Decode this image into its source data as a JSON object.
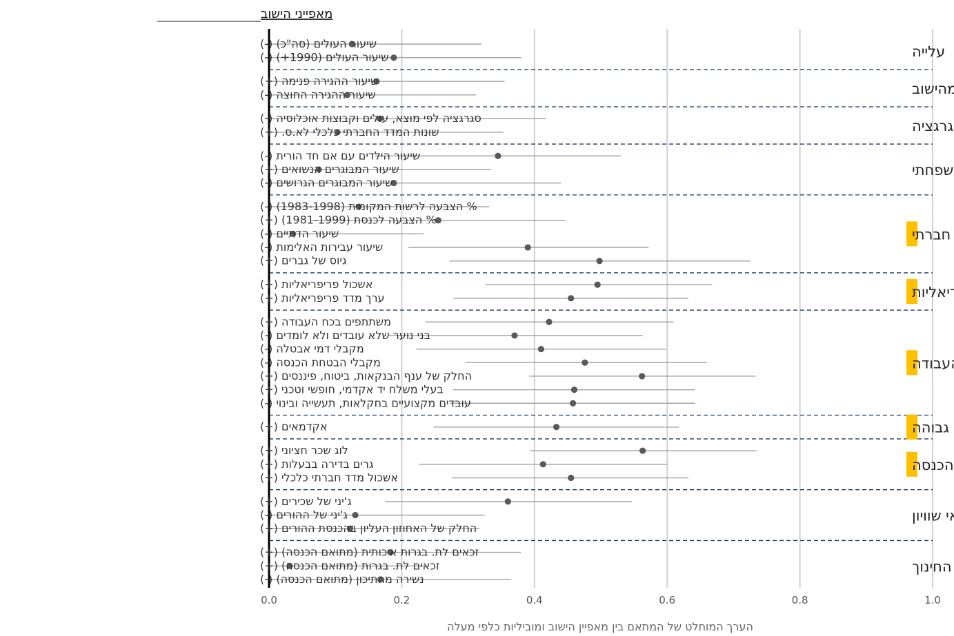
{
  "chart_data": {
    "type": "dot-range",
    "title": "מאפייני הישוב",
    "xlabel": "הערך המוחלט של המתאם בין מאפיין הישוב ומוביליות כלפי מעלה",
    "xlim": [
      0,
      1
    ],
    "xticks": [
      "0.0",
      "0.2",
      "0.4",
      "0.6",
      "0.8",
      "1.0"
    ],
    "grid": "vertical",
    "highlight_color": "#FFC000",
    "dot_color": "#595959",
    "line_color": "#A6A6A6",
    "separator_color": "#1F3864",
    "groups": [
      {
        "category": "עלייה",
        "highlight": false,
        "items": [
          {
            "label": "שיעור העולים (סה\"כ) (-)",
            "value": 0.125,
            "low": 0.0,
            "high": 0.32
          },
          {
            "label": "שיעור העולים (1990+) (-)",
            "value": 0.188,
            "low": 0.0,
            "high": 0.38
          }
        ]
      },
      {
        "category": "הגירה מהישוב",
        "highlight": false,
        "items": [
          {
            "label": "שיעור ההגירה פנימה (+)",
            "value": 0.162,
            "low": 0.0,
            "high": 0.355
          },
          {
            "label": "שיעור ההגירה החוצה (-)",
            "value": 0.118,
            "low": 0.0,
            "high": 0.312
          }
        ]
      },
      {
        "category": "סגרגציה",
        "highlight": false,
        "items": [
          {
            "label": "סגרגציה לפי מוצא, עולים וקבוצות אוכלוסיה (-)",
            "value": 0.167,
            "low": 0.0,
            "high": 0.418
          },
          {
            "label": "שונות המדד החברתי כלכלי לא.ס. (+)",
            "value": 0.103,
            "low": 0.0,
            "high": 0.353
          }
        ]
      },
      {
        "category": "מבנה משפחתי",
        "highlight": false,
        "items": [
          {
            "label": "שיעור הילדים עם אם חד הורית (-)",
            "value": 0.345,
            "low": 0.16,
            "high": 0.53
          },
          {
            "label": "שיעור המבוגרים הנשואים (+)",
            "value": 0.075,
            "low": 0.0,
            "high": 0.335
          },
          {
            "label": "שיעור המבוגרים הגרושים (-)",
            "value": 0.188,
            "low": 0.0,
            "high": 0.44
          }
        ]
      },
      {
        "category": "הון חברתי",
        "highlight": true,
        "items": [
          {
            "label": "% הצבעה לרשות המקומית (1983-1998) (-)",
            "value": 0.135,
            "low": 0.0,
            "high": 0.332
          },
          {
            "label": "% הצבעה לכנסת (1981-1999) (+)",
            "value": 0.255,
            "low": 0.062,
            "high": 0.447
          },
          {
            "label": "שיעור הדתיים (-)",
            "value": 0.036,
            "low": 0.0,
            "high": 0.233
          },
          {
            "label": "שיעור עבירות האלימות (-)",
            "value": 0.39,
            "low": 0.21,
            "high": 0.572
          },
          {
            "label": "גיוס של גברים (+)",
            "value": 0.498,
            "low": 0.272,
            "high": 0.725
          }
        ]
      },
      {
        "category": "פריפריאליות",
        "highlight": true,
        "items": [
          {
            "label": "אשכול פריפריאליות (+)",
            "value": 0.495,
            "low": 0.326,
            "high": 0.668
          },
          {
            "label": "ערך מדד פריפריאליות (+)",
            "value": 0.455,
            "low": 0.278,
            "high": 0.632
          }
        ]
      },
      {
        "category": "שוק העבודה",
        "highlight": true,
        "items": [
          {
            "label": "משתתפים בכח העבודה (+)",
            "value": 0.422,
            "low": 0.235,
            "high": 0.61
          },
          {
            "label": "בני נוער שלא עובדים ולא לומדים (-)",
            "value": 0.37,
            "low": 0.18,
            "high": 0.563
          },
          {
            "label": "מקבלי דמי אבטלה (-)",
            "value": 0.41,
            "low": 0.222,
            "high": 0.598
          },
          {
            "label": "מקבלי הבטחת הכנסה (-)",
            "value": 0.476,
            "low": 0.296,
            "high": 0.66
          },
          {
            "label": "החלק של ענף הבנקאות, ביטוח, פיננסים (+)",
            "value": 0.562,
            "low": 0.392,
            "high": 0.733
          },
          {
            "label": "בעלי משלח יד אקדמי, חופשי וטכני (+)",
            "value": 0.46,
            "low": 0.277,
            "high": 0.642
          },
          {
            "label": "עובדים מקצועיים בחקלאות, תעשייה ובינוי (-)",
            "value": 0.458,
            "low": 0.273,
            "high": 0.642
          }
        ]
      },
      {
        "category": "השכלה גבוהה",
        "highlight": true,
        "items": [
          {
            "label": "אקדמאים (+)",
            "value": 0.433,
            "low": 0.248,
            "high": 0.618
          }
        ]
      },
      {
        "category": "הכנסה",
        "highlight": true,
        "items": [
          {
            "label": "לוג שכר חציוני (+)",
            "value": 0.563,
            "low": 0.393,
            "high": 0.735
          },
          {
            "label": "גרים בדירה בבעלות (+)",
            "value": 0.413,
            "low": 0.226,
            "high": 0.6
          },
          {
            "label": "אשכול מדד חברתי כלכלי (+)",
            "value": 0.455,
            "low": 0.275,
            "high": 0.632
          }
        ]
      },
      {
        "category": "אי שוויון",
        "highlight": false,
        "items": [
          {
            "label": "ג'יני של שכירים (+)",
            "value": 0.36,
            "low": 0.175,
            "high": 0.547
          },
          {
            "label": "ג'יני של ההורים (-)",
            "value": 0.13,
            "low": 0.0,
            "high": 0.325
          },
          {
            "label": "החלק של האחוזון העליון בהכנסת ההורים (+)",
            "value": 0.122,
            "low": 0.0,
            "high": 0.317
          }
        ]
      },
      {
        "category": "מערכת החינוך",
        "highlight": false,
        "items": [
          {
            "label": "זכאים לת. בגרות איכותית (מתואם הכנסה) (+)",
            "value": 0.183,
            "low": 0.0,
            "high": 0.38
          },
          {
            "label": "זכאים לת. בגרות (מתואם הכנסה) (+)",
            "value": 0.031,
            "low": 0.0,
            "high": 0.235
          },
          {
            "label": "נשירה מהתיכון (מתואם הכנסה) (-)",
            "value": 0.168,
            "low": 0.0,
            "high": 0.365
          }
        ]
      }
    ]
  }
}
